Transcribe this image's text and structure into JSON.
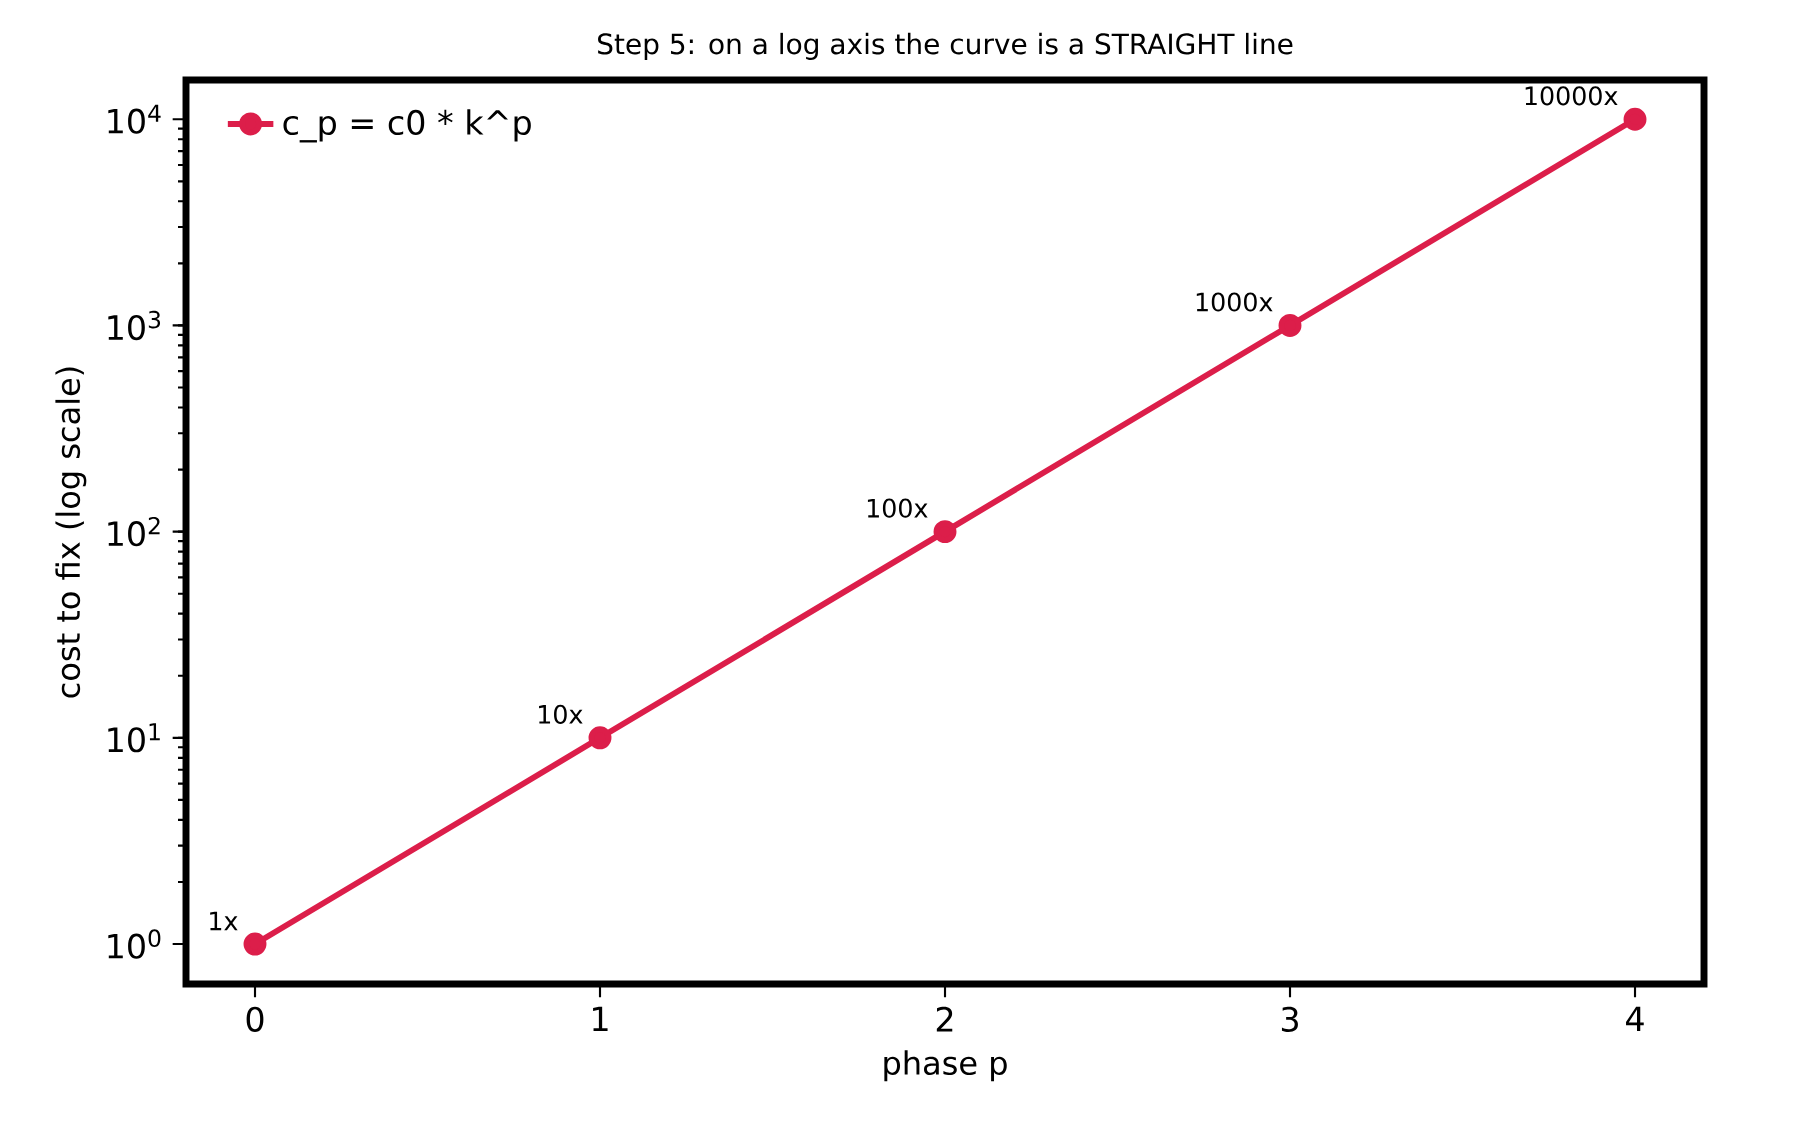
{
  "chart_data": {
    "type": "line",
    "title": "Step 5: on a log axis the curve is a STRAIGHT line",
    "xlabel": "phase p",
    "ylabel": "cost to fix  (log scale)",
    "x": [
      0,
      1,
      2,
      3,
      4
    ],
    "series": [
      {
        "name": "c_p = c0 * k^p",
        "color": "#dc1e4a",
        "values": [
          1,
          10,
          100,
          1000,
          10000
        ]
      }
    ],
    "log": "y",
    "xlim": [
      -0.2,
      4.2
    ],
    "ylim": [
      0.64,
      15500
    ],
    "xticks": [
      0,
      1,
      2,
      3,
      4
    ],
    "yticks": [
      {
        "value": 1,
        "label": "10$^{0}$"
      },
      {
        "value": 10,
        "label": "10$^{1}$"
      },
      {
        "value": 100,
        "label": "10$^{2}$"
      },
      {
        "value": 1000,
        "label": "10$^{3}$"
      },
      {
        "value": 10000,
        "label": "10$^{4}$"
      }
    ],
    "legend": "top left",
    "marker": "circle",
    "line_style": "solid",
    "grid": false,
    "annotations": [
      {
        "text": "1x",
        "x": 0,
        "y": 1
      },
      {
        "text": "10x",
        "x": 1,
        "y": 10
      },
      {
        "text": "100x",
        "x": 2,
        "y": 100
      },
      {
        "text": "1000x",
        "x": 3,
        "y": 1000
      },
      {
        "text": "10000x",
        "x": 4,
        "y": 10000
      }
    ]
  }
}
